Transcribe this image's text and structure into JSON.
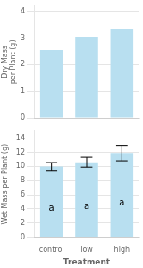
{
  "chart_data": [
    {
      "type": "bar",
      "categories": [
        "control",
        "low",
        "high"
      ],
      "values": [
        2.55,
        3.05,
        3.35
      ],
      "color": "#b8dff0",
      "ylabel": "Dry Mass\nper Plant (g)",
      "ylim": [
        0,
        4.2
      ],
      "yticks": [
        0,
        1,
        2,
        3,
        4
      ],
      "grid": true,
      "tick_labels": "y"
    },
    {
      "type": "bar",
      "categories": [
        "control",
        "low",
        "high"
      ],
      "values": [
        10.0,
        10.6,
        11.9
      ],
      "yerr": [
        0.55,
        0.7,
        1.1
      ],
      "annotations": [
        "a",
        "a",
        "a"
      ],
      "color": "#b8dff0",
      "xlabel": "Treatment",
      "ylabel": "Wet Mass per Plant (g)",
      "ylim": [
        0,
        15
      ],
      "yticks": [
        0,
        2,
        4,
        6,
        8,
        10,
        12,
        14
      ],
      "grid": true
    }
  ]
}
